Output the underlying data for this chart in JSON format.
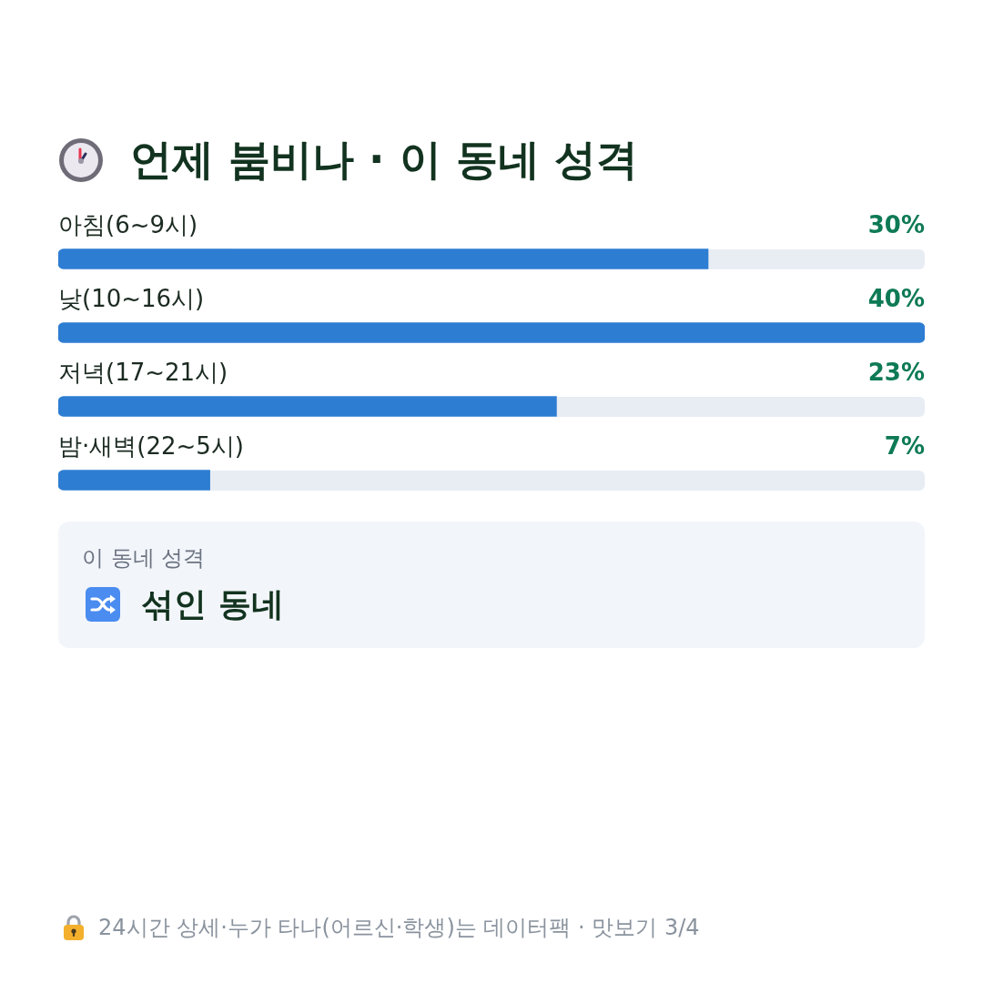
{
  "chart_data": {
    "type": "bar",
    "orientation": "horizontal",
    "title": "언제 붐비나 · 이 동네 성격",
    "categories": [
      "아침(6~9시)",
      "낮(10~16시)",
      "저녁(17~21시)",
      "밤·새벽(22~5시)"
    ],
    "values": [
      30,
      40,
      23,
      7
    ],
    "color": "#2d7dd2",
    "value_labels": [
      "30%",
      "40%",
      "23%",
      "7%"
    ],
    "annotations": [
      "이 동네 성격",
      "섞인 동네",
      "24시간 상세·누가 타나(어르신·학생)는 데이터팩 · 맛보기 3/4"
    ]
  }
}
